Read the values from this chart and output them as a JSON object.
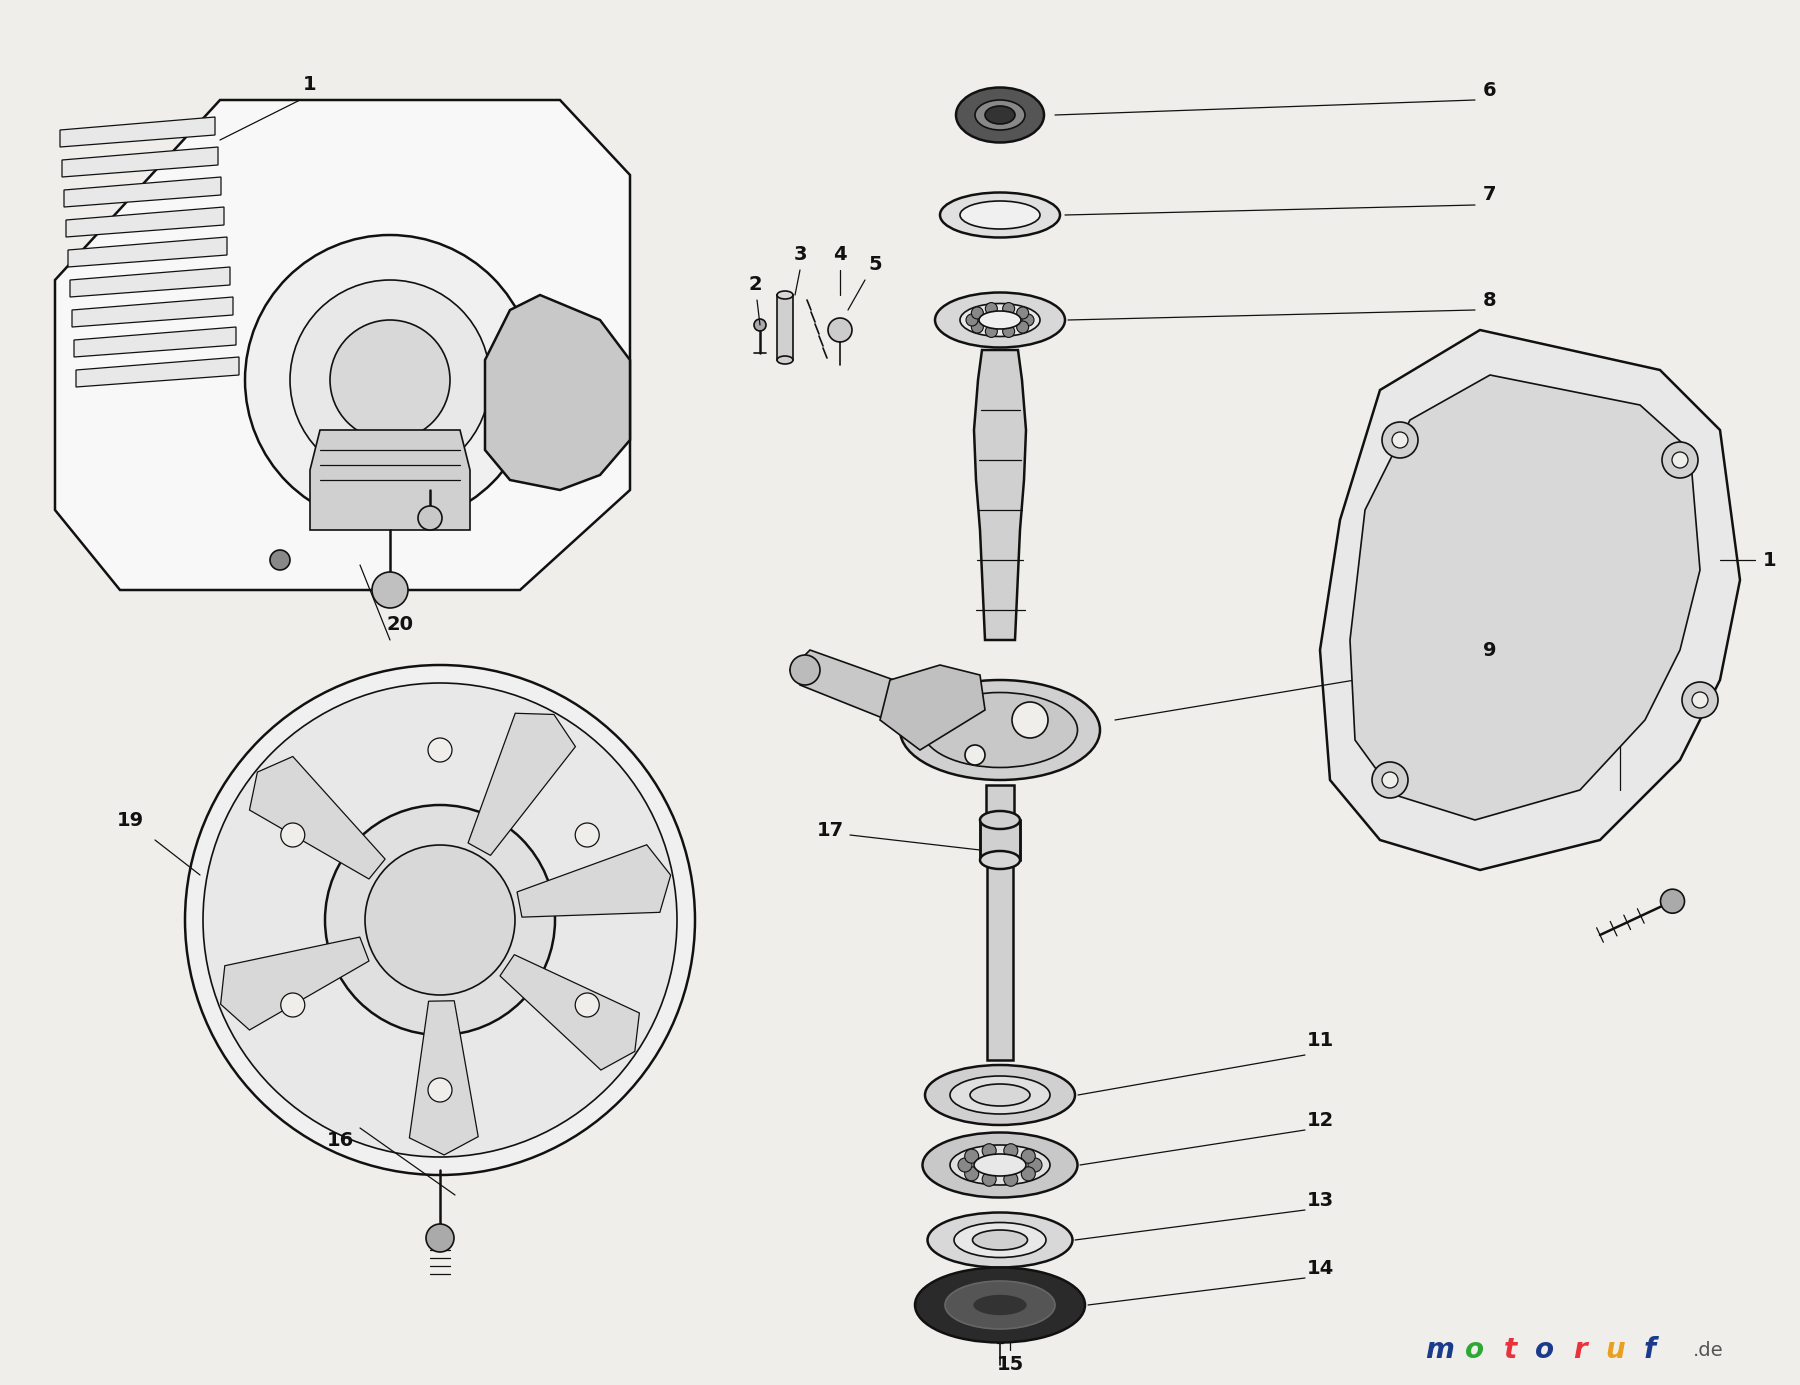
{
  "bg": "#f0eeeb",
  "lc": "#111111",
  "fig_width": 18.0,
  "fig_height": 13.85,
  "dpi": 100,
  "wm_letters": [
    "m",
    "o",
    "t",
    "o",
    "r",
    "u",
    "f"
  ],
  "wm_colors": [
    "#1a3a8c",
    "#2da832",
    "#e8323c",
    "#1a3a8c",
    "#e8323c",
    "#e8a020",
    "#1a3a8c"
  ],
  "label_fs": 14
}
